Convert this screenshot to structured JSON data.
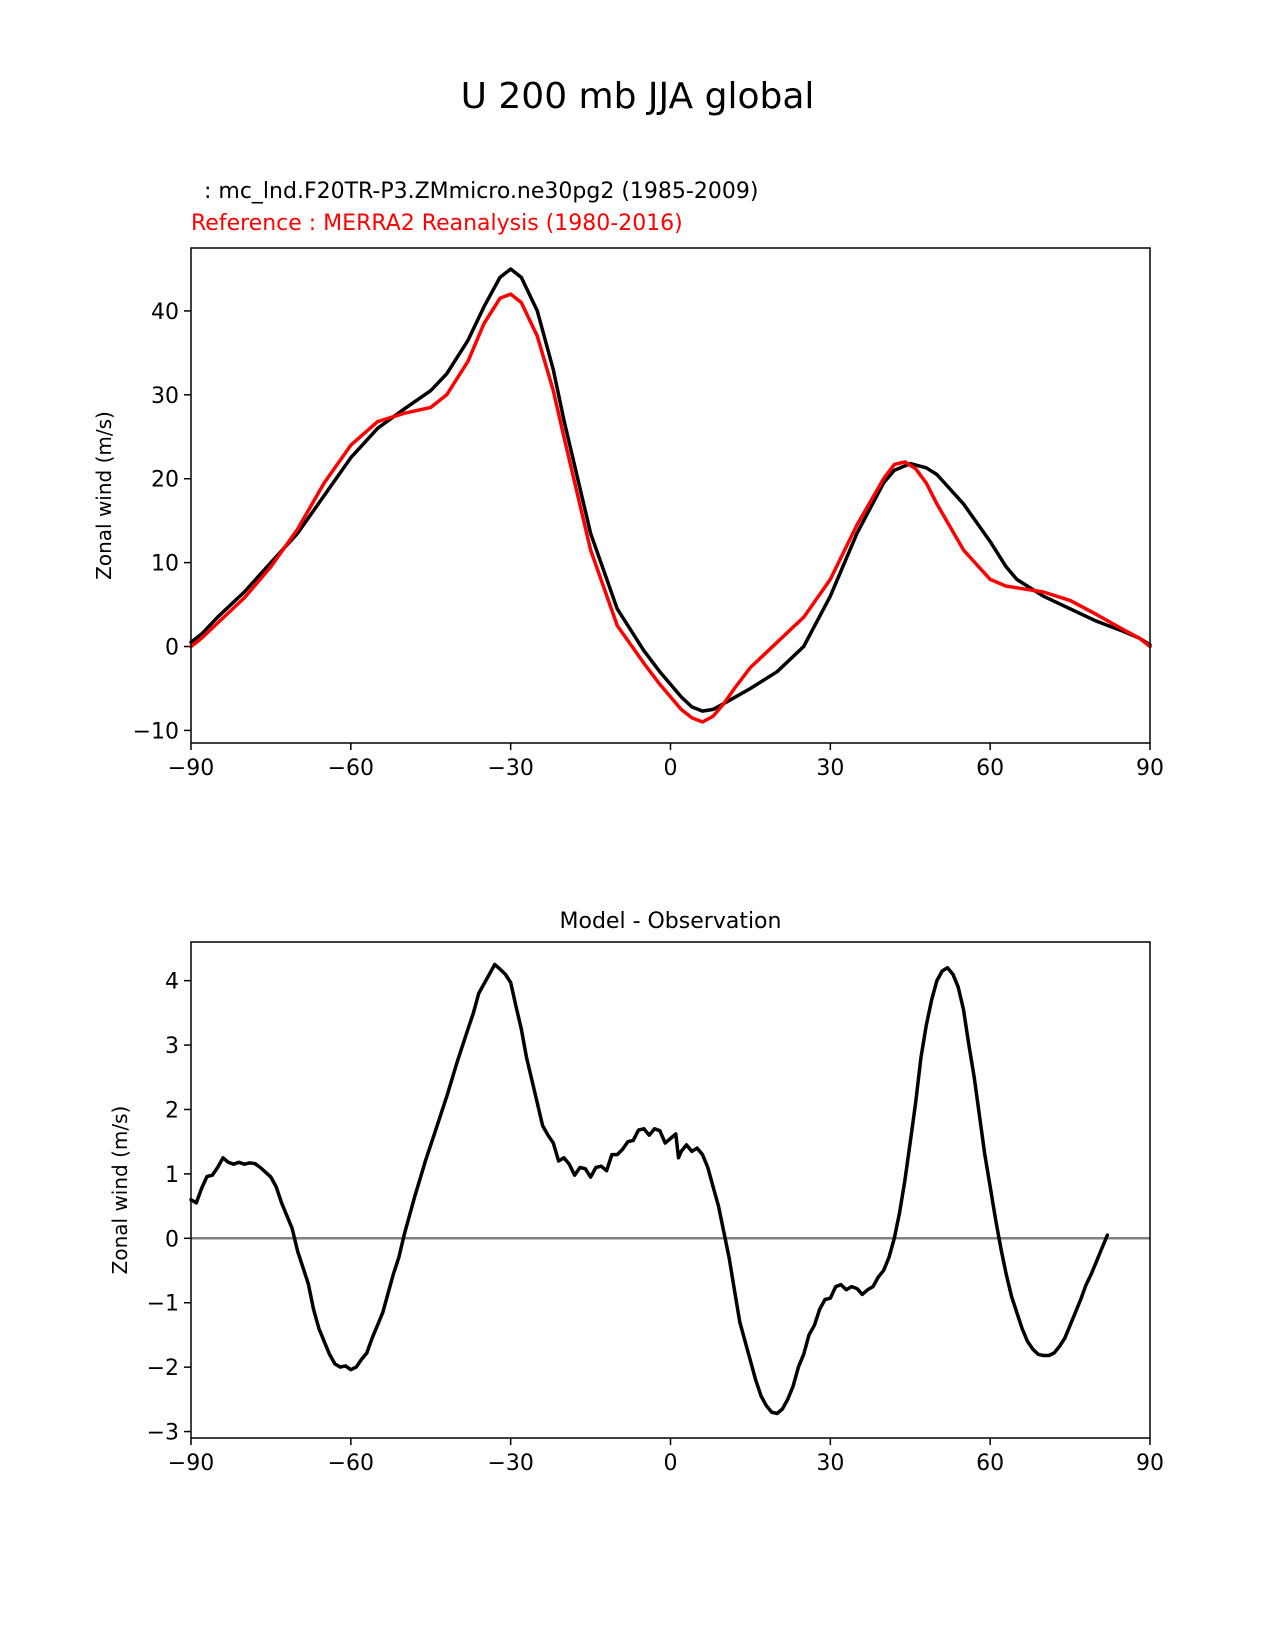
{
  "figure": {
    "suptitle": "U 200 mb JJA global"
  },
  "chart_data": [
    {
      "type": "line",
      "test_label": " : mc_lnd.F20TR-P3.ZMmicro.ne30pg2 (1985-2009)",
      "ref_label": "Reference : MERRA2 Reanalysis (1980-2016)",
      "title": "",
      "xlabel": "",
      "ylabel": "Zonal wind (m/s)",
      "xlim": [
        -90,
        90
      ],
      "ylim": [
        -11.5,
        47.5
      ],
      "xticks": [
        -90,
        -60,
        -30,
        0,
        30,
        60,
        90
      ],
      "xtick_labels": [
        "−90",
        "−60",
        "−30",
        "0",
        "30",
        "60",
        "90"
      ],
      "yticks": [
        -10,
        0,
        10,
        20,
        30,
        40
      ],
      "ytick_labels": [
        "−10",
        "0",
        "10",
        "20",
        "30",
        "40"
      ],
      "grid": false,
      "series": [
        {
          "color": "#000000",
          "points": [
            [
              -90,
              0.5
            ],
            [
              -88,
              1.5
            ],
            [
              -85,
              3.5
            ],
            [
              -80,
              6.5
            ],
            [
              -75,
              10
            ],
            [
              -70,
              13.5
            ],
            [
              -65,
              18
            ],
            [
              -60,
              22.5
            ],
            [
              -55,
              26
            ],
            [
              -50,
              28.3
            ],
            [
              -45,
              30.5
            ],
            [
              -42,
              32.5
            ],
            [
              -38,
              36.5
            ],
            [
              -35,
              40.5
            ],
            [
              -32,
              44
            ],
            [
              -30,
              45
            ],
            [
              -28,
              44
            ],
            [
              -25,
              40
            ],
            [
              -22,
              33
            ],
            [
              -20,
              27
            ],
            [
              -15,
              13.5
            ],
            [
              -10,
              4.5
            ],
            [
              -5,
              -0.5
            ],
            [
              -2,
              -3
            ],
            [
              0,
              -4.5
            ],
            [
              2,
              -6
            ],
            [
              4,
              -7.2
            ],
            [
              6,
              -7.7
            ],
            [
              8,
              -7.5
            ],
            [
              10,
              -6.8
            ],
            [
              15,
              -5
            ],
            [
              20,
              -3
            ],
            [
              25,
              0
            ],
            [
              30,
              6
            ],
            [
              35,
              13.5
            ],
            [
              40,
              19.5
            ],
            [
              42,
              21
            ],
            [
              45,
              21.8
            ],
            [
              48,
              21.3
            ],
            [
              50,
              20.5
            ],
            [
              55,
              17
            ],
            [
              60,
              12.5
            ],
            [
              63,
              9.5
            ],
            [
              65,
              8
            ],
            [
              70,
              6
            ],
            [
              75,
              4.5
            ],
            [
              80,
              3
            ],
            [
              85,
              1.8
            ],
            [
              88,
              1
            ],
            [
              90,
              0.2
            ]
          ]
        },
        {
          "color": "#ff0000",
          "points": [
            [
              -90,
              0
            ],
            [
              -88,
              1
            ],
            [
              -85,
              2.8
            ],
            [
              -80,
              5.8
            ],
            [
              -75,
              9.5
            ],
            [
              -70,
              14
            ],
            [
              -65,
              19.5
            ],
            [
              -60,
              24
            ],
            [
              -55,
              26.8
            ],
            [
              -50,
              27.8
            ],
            [
              -45,
              28.5
            ],
            [
              -42,
              30
            ],
            [
              -38,
              34
            ],
            [
              -35,
              38.5
            ],
            [
              -32,
              41.5
            ],
            [
              -30,
              42
            ],
            [
              -28,
              41
            ],
            [
              -25,
              37
            ],
            [
              -22,
              30.5
            ],
            [
              -20,
              25
            ],
            [
              -15,
              11.5
            ],
            [
              -10,
              2.5
            ],
            [
              -5,
              -2
            ],
            [
              -2,
              -4.5
            ],
            [
              0,
              -6
            ],
            [
              2,
              -7.5
            ],
            [
              4,
              -8.5
            ],
            [
              6,
              -9
            ],
            [
              8,
              -8.3
            ],
            [
              10,
              -6.8
            ],
            [
              12,
              -5
            ],
            [
              15,
              -2.5
            ],
            [
              20,
              0.5
            ],
            [
              25,
              3.5
            ],
            [
              30,
              8
            ],
            [
              35,
              14.5
            ],
            [
              40,
              20
            ],
            [
              42,
              21.7
            ],
            [
              44,
              22
            ],
            [
              46,
              21.2
            ],
            [
              48,
              19.5
            ],
            [
              50,
              17
            ],
            [
              55,
              11.5
            ],
            [
              60,
              8
            ],
            [
              63,
              7.2
            ],
            [
              65,
              7
            ],
            [
              70,
              6.5
            ],
            [
              75,
              5.5
            ],
            [
              80,
              3.8
            ],
            [
              85,
              2
            ],
            [
              88,
              1
            ],
            [
              90,
              0
            ]
          ]
        }
      ]
    },
    {
      "type": "line",
      "title": "Model - Observation",
      "xlabel": "",
      "ylabel": "Zonal wind (m/s)",
      "xlim": [
        -90,
        90
      ],
      "ylim": [
        -3.1,
        4.6
      ],
      "xticks": [
        -90,
        -60,
        -30,
        0,
        30,
        60,
        90
      ],
      "xtick_labels": [
        "−90",
        "−60",
        "−30",
        "0",
        "30",
        "60",
        "90"
      ],
      "yticks": [
        -3,
        -2,
        -1,
        0,
        1,
        2,
        3,
        4
      ],
      "ytick_labels": [
        "−3",
        "−2",
        "−1",
        "0",
        "1",
        "2",
        "3",
        "4"
      ],
      "grid": false,
      "zero_line": {
        "y": 0,
        "color": "#808080"
      },
      "series": [
        {
          "color": "#000000",
          "points": [
            [
              -90,
              0.6
            ],
            [
              -89,
              0.55
            ],
            [
              -88,
              0.78
            ],
            [
              -87,
              0.96
            ],
            [
              -86,
              0.98
            ],
            [
              -85,
              1.1
            ],
            [
              -84,
              1.25
            ],
            [
              -83,
              1.18
            ],
            [
              -82,
              1.15
            ],
            [
              -81,
              1.18
            ],
            [
              -80,
              1.15
            ],
            [
              -79,
              1.17
            ],
            [
              -78,
              1.16
            ],
            [
              -77,
              1.1
            ],
            [
              -75,
              0.95
            ],
            [
              -74,
              0.8
            ],
            [
              -73,
              0.55
            ],
            [
              -71,
              0.15
            ],
            [
              -70,
              -0.2
            ],
            [
              -68,
              -0.7
            ],
            [
              -67,
              -1.1
            ],
            [
              -66,
              -1.4
            ],
            [
              -65,
              -1.6
            ],
            [
              -64,
              -1.8
            ],
            [
              -63,
              -1.95
            ],
            [
              -62,
              -2.0
            ],
            [
              -61,
              -1.98
            ],
            [
              -60,
              -2.04
            ],
            [
              -59,
              -2.0
            ],
            [
              -58,
              -1.88
            ],
            [
              -57,
              -1.78
            ],
            [
              -56,
              -1.55
            ],
            [
              -55,
              -1.35
            ],
            [
              -54,
              -1.15
            ],
            [
              -53,
              -0.85
            ],
            [
              -52,
              -0.55
            ],
            [
              -51,
              -0.3
            ],
            [
              -50,
              0.05
            ],
            [
              -49,
              0.35
            ],
            [
              -48,
              0.65
            ],
            [
              -46,
              1.2
            ],
            [
              -44,
              1.7
            ],
            [
              -42,
              2.2
            ],
            [
              -40,
              2.75
            ],
            [
              -38,
              3.25
            ],
            [
              -37,
              3.5
            ],
            [
              -36,
              3.8
            ],
            [
              -35,
              3.95
            ],
            [
              -34,
              4.1
            ],
            [
              -33,
              4.25
            ],
            [
              -32,
              4.18
            ],
            [
              -31,
              4.1
            ],
            [
              -30,
              3.97
            ],
            [
              -29,
              3.6
            ],
            [
              -28,
              3.25
            ],
            [
              -27,
              2.8
            ],
            [
              -26,
              2.45
            ],
            [
              -25,
              2.1
            ],
            [
              -24,
              1.75
            ],
            [
              -23,
              1.6
            ],
            [
              -22,
              1.48
            ],
            [
              -21,
              1.2
            ],
            [
              -20,
              1.25
            ],
            [
              -19,
              1.15
            ],
            [
              -18,
              0.98
            ],
            [
              -17,
              1.1
            ],
            [
              -16,
              1.08
            ],
            [
              -15,
              0.95
            ],
            [
              -14,
              1.1
            ],
            [
              -13,
              1.12
            ],
            [
              -12,
              1.05
            ],
            [
              -11,
              1.3
            ],
            [
              -10,
              1.3
            ],
            [
              -9,
              1.38
            ],
            [
              -8,
              1.5
            ],
            [
              -7,
              1.52
            ],
            [
              -6,
              1.68
            ],
            [
              -5,
              1.7
            ],
            [
              -4,
              1.6
            ],
            [
              -3,
              1.7
            ],
            [
              -2,
              1.67
            ],
            [
              -1,
              1.48
            ],
            [
              0,
              1.55
            ],
            [
              1,
              1.62
            ],
            [
              1.5,
              1.25
            ],
            [
              2,
              1.35
            ],
            [
              3,
              1.45
            ],
            [
              4,
              1.35
            ],
            [
              5,
              1.4
            ],
            [
              6,
              1.3
            ],
            [
              7,
              1.1
            ],
            [
              8,
              0.8
            ],
            [
              9,
              0.5
            ],
            [
              10,
              0.1
            ],
            [
              11,
              -0.3
            ],
            [
              12,
              -0.8
            ],
            [
              13,
              -1.3
            ],
            [
              14,
              -1.6
            ],
            [
              15,
              -1.9
            ],
            [
              16,
              -2.2
            ],
            [
              17,
              -2.45
            ],
            [
              18,
              -2.6
            ],
            [
              19,
              -2.7
            ],
            [
              20,
              -2.72
            ],
            [
              21,
              -2.65
            ],
            [
              22,
              -2.5
            ],
            [
              23,
              -2.3
            ],
            [
              24,
              -2.0
            ],
            [
              25,
              -1.8
            ],
            [
              26,
              -1.5
            ],
            [
              27,
              -1.35
            ],
            [
              28,
              -1.1
            ],
            [
              29,
              -0.95
            ],
            [
              30,
              -0.93
            ],
            [
              31,
              -0.75
            ],
            [
              32,
              -0.72
            ],
            [
              33,
              -0.8
            ],
            [
              34,
              -0.75
            ],
            [
              35,
              -0.78
            ],
            [
              36,
              -0.87
            ],
            [
              37,
              -0.8
            ],
            [
              38,
              -0.75
            ],
            [
              39,
              -0.6
            ],
            [
              40,
              -0.5
            ],
            [
              41,
              -0.3
            ],
            [
              42,
              0.0
            ],
            [
              43,
              0.4
            ],
            [
              44,
              0.9
            ],
            [
              45,
              1.5
            ],
            [
              46,
              2.1
            ],
            [
              47,
              2.8
            ],
            [
              48,
              3.3
            ],
            [
              49,
              3.7
            ],
            [
              50,
              4.0
            ],
            [
              51,
              4.15
            ],
            [
              52,
              4.2
            ],
            [
              53,
              4.1
            ],
            [
              54,
              3.9
            ],
            [
              55,
              3.55
            ],
            [
              56,
              3.0
            ],
            [
              57,
              2.5
            ],
            [
              58,
              1.9
            ],
            [
              59,
              1.3
            ],
            [
              60,
              0.8
            ],
            [
              61,
              0.3
            ],
            [
              62,
              -0.15
            ],
            [
              63,
              -0.55
            ],
            [
              64,
              -0.9
            ],
            [
              65,
              -1.15
            ],
            [
              66,
              -1.4
            ],
            [
              67,
              -1.6
            ],
            [
              68,
              -1.72
            ],
            [
              69,
              -1.8
            ],
            [
              70,
              -1.82
            ],
            [
              71,
              -1.82
            ],
            [
              72,
              -1.78
            ],
            [
              73,
              -1.68
            ],
            [
              74,
              -1.55
            ],
            [
              75,
              -1.35
            ],
            [
              76,
              -1.15
            ],
            [
              77,
              -0.95
            ],
            [
              78,
              -0.72
            ],
            [
              79,
              -0.55
            ],
            [
              80,
              -0.35
            ],
            [
              81,
              -0.15
            ],
            [
              82,
              0.05
            ]
          ]
        }
      ]
    }
  ]
}
